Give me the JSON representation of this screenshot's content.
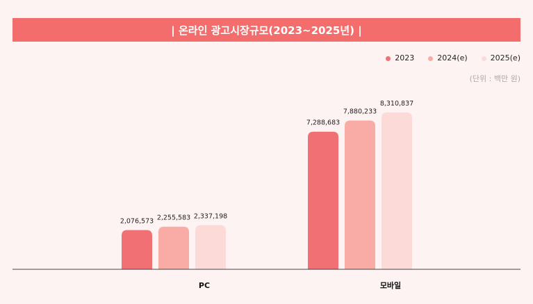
{
  "chart_data": {
    "type": "bar",
    "title": "| 온라인 광고시장규모(2023~2025년) |",
    "unit_note": "(단위 : 백만 원)",
    "categories": [
      "PC",
      "모바일"
    ],
    "series": [
      {
        "name": "2023",
        "values": [
          2076573,
          7288683
        ],
        "color": "#f07073"
      },
      {
        "name": "2024(e)",
        "values": [
          2255583,
          7880233
        ],
        "color": "#f9aba6"
      },
      {
        "name": "2025(e)",
        "values": [
          2337198,
          8310837
        ],
        "color": "#fbdad8"
      }
    ],
    "data_labels": [
      [
        "2,076,573",
        "7,288,683"
      ],
      [
        "2,255,583",
        "7,880,233"
      ],
      [
        "2,337,198",
        "8,310,837"
      ]
    ],
    "legend": "top-right",
    "grid": false
  }
}
